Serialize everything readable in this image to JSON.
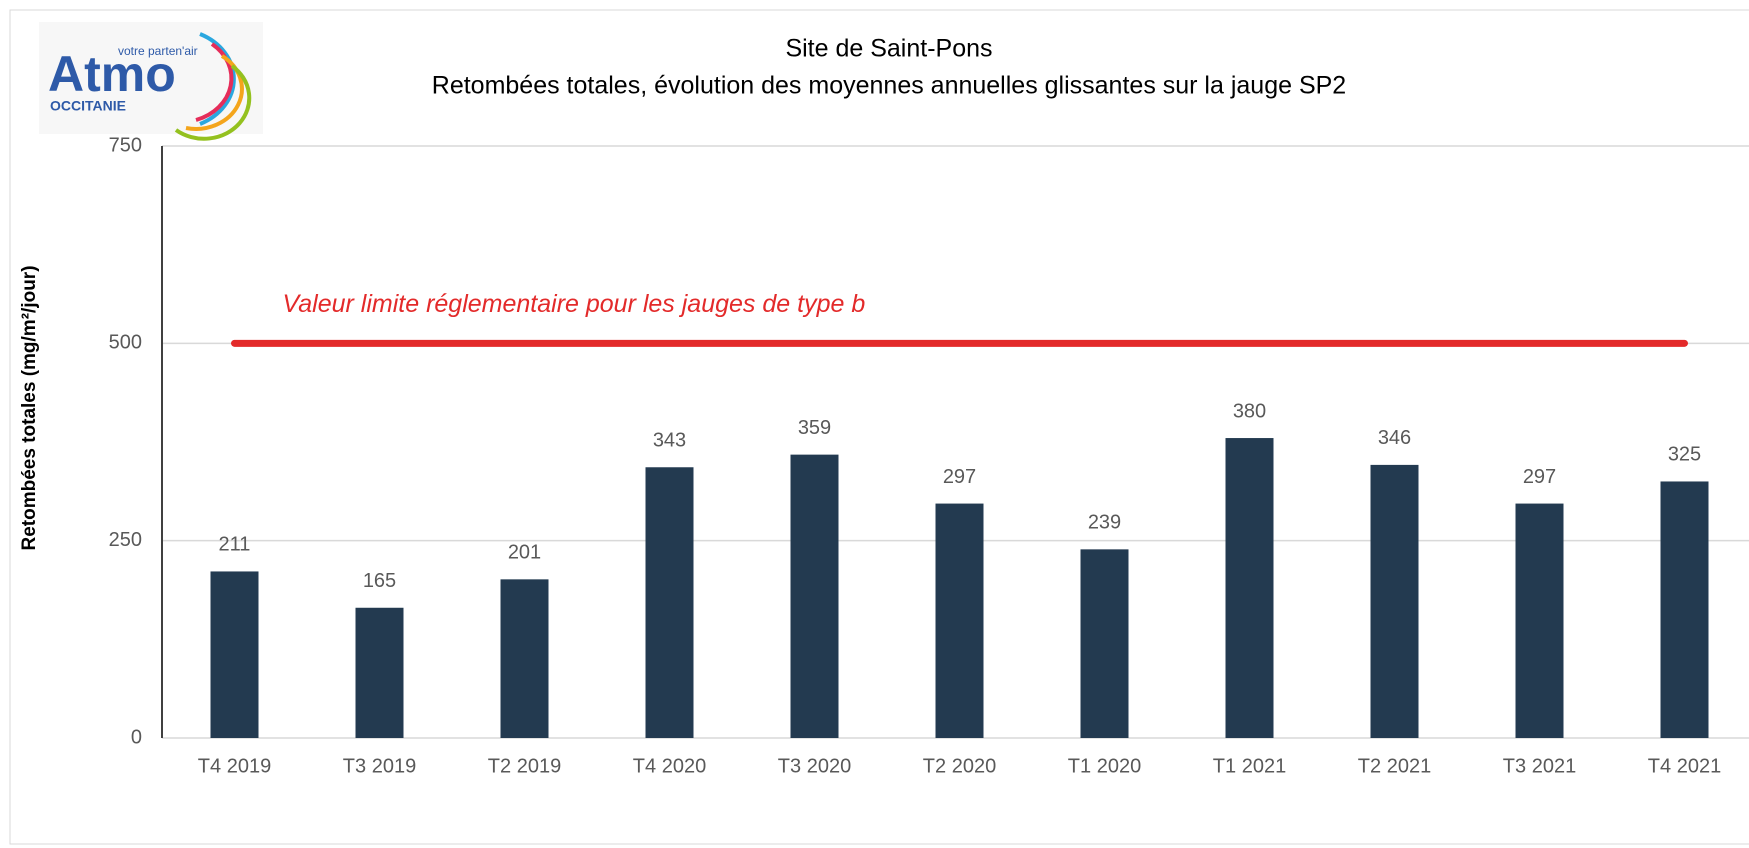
{
  "logo": {
    "tagline": "votre parten'air",
    "name": "Atmo",
    "region": "OCCITANIE"
  },
  "chart_data": {
    "type": "bar",
    "title": "Site de Saint-Pons",
    "subtitle": "Retombées totales, évolution des moyennes annuelles glissantes sur la jauge SP2",
    "y_label": "Retombées totales (mg/m²/jour)",
    "categories": [
      "T4 2019",
      "T3 2019",
      "T2 2019",
      "T4 2020",
      "T3 2020",
      "T2 2020",
      "T1 2020",
      "T1 2021",
      "T2 2021",
      "T3 2021",
      "T4 2021"
    ],
    "values": [
      211,
      165,
      201,
      343,
      359,
      297,
      239,
      380,
      346,
      297,
      325
    ],
    "color": "#233a50",
    "ylim": [
      0,
      750
    ],
    "yticks": [
      0,
      250,
      500,
      750
    ],
    "grid": true,
    "limit": {
      "value": 500,
      "label": "Valeur limite réglementaire pour les jauges de type b",
      "color": "#e32a2a"
    }
  }
}
